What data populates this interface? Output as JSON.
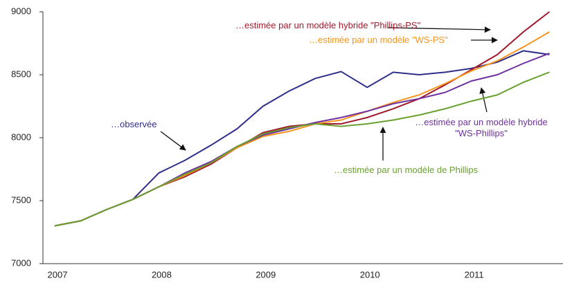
{
  "chart_data": {
    "type": "line",
    "categories": [
      "2007",
      null,
      null,
      null,
      "2008",
      null,
      null,
      null,
      "2009",
      null,
      null,
      null,
      "2010",
      null,
      null,
      null,
      "2011",
      null,
      null,
      null
    ],
    "series": [
      {
        "name": "…observée",
        "color": "#2e2e8a",
        "values": [
          7300,
          7340,
          7430,
          7510,
          7720,
          7820,
          7940,
          8070,
          8250,
          8370,
          8470,
          8525,
          8400,
          8520,
          8500,
          8520,
          8550,
          8600,
          8690,
          8660
        ]
      },
      {
        "name": "…estimée par un modèle hybride \"Phillips-PS\"",
        "color": "#a0192b",
        "values": [
          7300,
          7340,
          7430,
          7510,
          7610,
          7690,
          7790,
          7920,
          8040,
          8090,
          8110,
          8110,
          8160,
          8230,
          8310,
          8420,
          8540,
          8660,
          8840,
          9000
        ]
      },
      {
        "name": "…estimée par un modèle \"WS-PS\"",
        "color": "#f7941d",
        "values": [
          7300,
          7340,
          7430,
          7510,
          7610,
          7700,
          7800,
          7920,
          8010,
          8050,
          8110,
          8140,
          8210,
          8280,
          8340,
          8430,
          8530,
          8610,
          8720,
          8840
        ]
      },
      {
        "name": "…estimée par un modèle hybride \"WS-Phillips\"",
        "color": "#7030a0",
        "values": [
          7300,
          7340,
          7430,
          7510,
          7610,
          7720,
          7810,
          7930,
          8020,
          8070,
          8120,
          8160,
          8210,
          8270,
          8310,
          8360,
          8450,
          8500,
          8590,
          8670
        ]
      },
      {
        "name": "…estimée par un modèle de Phillips",
        "color": "#6aa030",
        "values": [
          7300,
          7340,
          7430,
          7510,
          7610,
          7710,
          7800,
          7930,
          8030,
          8080,
          8110,
          8090,
          8110,
          8140,
          8180,
          8230,
          8290,
          8340,
          8440,
          8520
        ]
      }
    ],
    "ylim": [
      7000,
      9000
    ],
    "yticks": [
      7000,
      7500,
      8000,
      8500,
      9000
    ],
    "grid": false
  }
}
